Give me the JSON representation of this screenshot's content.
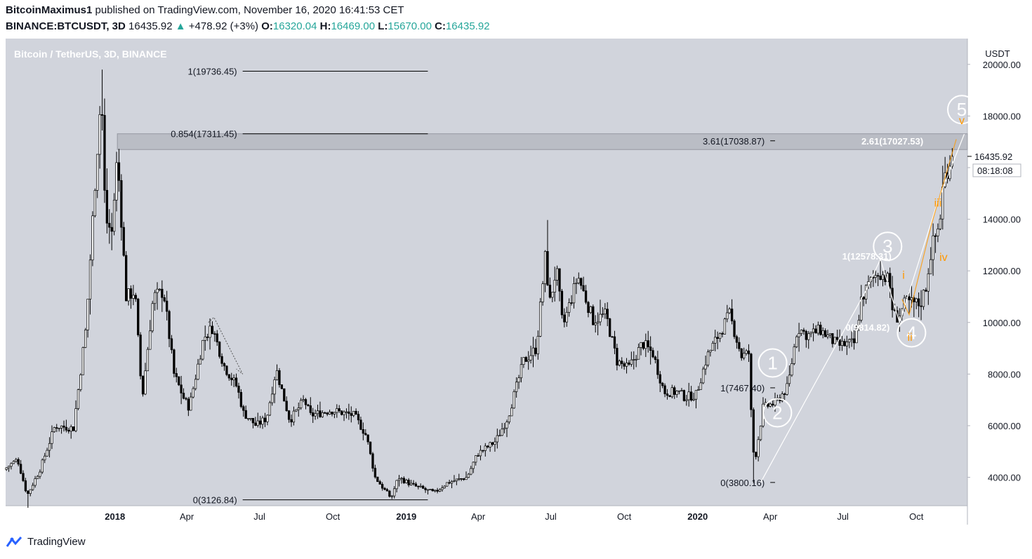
{
  "header": {
    "author": "BitcoinMaximus1",
    "published": "published on TradingView.com, November 16, 2020 16:41:53 CET",
    "symbol": "BINANCE:BTCUSDT, 3D",
    "last": "16435.92",
    "arrow": "▲",
    "change": "+478.92 (+3%)",
    "o_label": "O:",
    "o": "16320.04",
    "h_label": "H:",
    "h": "16469.00",
    "l_label": "L:",
    "l": "15670.00",
    "c_label": "C:",
    "c": "16435.92"
  },
  "footer": {
    "brand": "TradingView"
  },
  "colors": {
    "chart_bg": "#d1d4dc",
    "candle": "#000000",
    "wave_orange": "#ff9800",
    "wave_white": "#ffffff",
    "zone": "#b4b7bf"
  },
  "chart_data": {
    "type": "candlestick",
    "title": "Bitcoin / TetherUS, 3D, BINANCE",
    "ylabel": "USDT",
    "ylim": [
      2900,
      21000
    ],
    "yticks": [
      4000,
      6000,
      8000,
      10000,
      12000,
      14000,
      16000,
      18000,
      20000
    ],
    "ytick_labels": [
      "4000.00",
      "6000.00",
      "8000.00",
      "10000.00",
      "12000.00",
      "14000.00",
      "16000.00",
      "18000.00",
      "20000.00"
    ],
    "xlim": [
      "2017-08-17",
      "2020-12-04"
    ],
    "xticks": [
      {
        "date": "2018-01-01",
        "label": "2018",
        "bold": true
      },
      {
        "date": "2018-04-01",
        "label": "Apr",
        "bold": false
      },
      {
        "date": "2018-07-01",
        "label": "Jul",
        "bold": false
      },
      {
        "date": "2018-10-01",
        "label": "Oct",
        "bold": false
      },
      {
        "date": "2019-01-01",
        "label": "2019",
        "bold": true
      },
      {
        "date": "2019-04-01",
        "label": "Apr",
        "bold": false
      },
      {
        "date": "2019-07-01",
        "label": "Jul",
        "bold": false
      },
      {
        "date": "2019-10-01",
        "label": "Oct",
        "bold": false
      },
      {
        "date": "2020-01-01",
        "label": "2020",
        "bold": true
      },
      {
        "date": "2020-04-01",
        "label": "Apr",
        "bold": false
      },
      {
        "date": "2020-07-01",
        "label": "Jul",
        "bold": false
      },
      {
        "date": "2020-10-01",
        "label": "Oct",
        "bold": false
      }
    ],
    "price_path": [
      [
        "2017-08-17",
        4300
      ],
      [
        "2017-09-03",
        4700
      ],
      [
        "2017-09-15",
        3300
      ],
      [
        "2017-10-01",
        4300
      ],
      [
        "2017-10-20",
        6000
      ],
      [
        "2017-11-12",
        5900
      ],
      [
        "2017-11-28",
        9900
      ],
      [
        "2017-12-08",
        15000
      ],
      [
        "2017-12-17",
        19000
      ],
      [
        "2017-12-22",
        14000
      ],
      [
        "2017-12-30",
        13500
      ],
      [
        "2018-01-06",
        16500
      ],
      [
        "2018-01-17",
        11000
      ],
      [
        "2018-01-28",
        11200
      ],
      [
        "2018-02-06",
        7000
      ],
      [
        "2018-02-20",
        11000
      ],
      [
        "2018-03-05",
        11200
      ],
      [
        "2018-03-18",
        8000
      ],
      [
        "2018-03-31",
        7000
      ],
      [
        "2018-04-06",
        6700
      ],
      [
        "2018-04-24",
        9400
      ],
      [
        "2018-05-05",
        9800
      ],
      [
        "2018-05-20",
        8300
      ],
      [
        "2018-06-05",
        7500
      ],
      [
        "2018-06-13",
        6500
      ],
      [
        "2018-06-29",
        6000
      ],
      [
        "2018-07-12",
        6300
      ],
      [
        "2018-07-24",
        8200
      ],
      [
        "2018-08-10",
        6200
      ],
      [
        "2018-08-28",
        7000
      ],
      [
        "2018-09-05",
        6400
      ],
      [
        "2018-10-01",
        6600
      ],
      [
        "2018-10-30",
        6400
      ],
      [
        "2018-11-14",
        5600
      ],
      [
        "2018-11-25",
        4000
      ],
      [
        "2018-12-07",
        3500
      ],
      [
        "2018-12-15",
        3200
      ],
      [
        "2018-12-24",
        4000
      ],
      [
        "2019-01-10",
        3700
      ],
      [
        "2019-02-07",
        3400
      ],
      [
        "2019-02-24",
        3800
      ],
      [
        "2019-03-20",
        4000
      ],
      [
        "2019-04-02",
        4900
      ],
      [
        "2019-04-25",
        5400
      ],
      [
        "2019-05-10",
        6300
      ],
      [
        "2019-05-30",
        8500
      ],
      [
        "2019-06-15",
        9000
      ],
      [
        "2019-06-26",
        12500
      ],
      [
        "2019-07-02",
        10800
      ],
      [
        "2019-07-10",
        12100
      ],
      [
        "2019-07-18",
        9800
      ],
      [
        "2019-08-06",
        11800
      ],
      [
        "2019-08-25",
        10100
      ],
      [
        "2019-09-10",
        10300
      ],
      [
        "2019-09-24",
        8500
      ],
      [
        "2019-10-08",
        8200
      ],
      [
        "2019-10-26",
        9200
      ],
      [
        "2019-11-08",
        8800
      ],
      [
        "2019-11-22",
        7300
      ],
      [
        "2019-12-10",
        7300
      ],
      [
        "2019-12-18",
        7100
      ],
      [
        "2020-01-01",
        7200
      ],
      [
        "2020-01-15",
        8700
      ],
      [
        "2020-02-12",
        10300
      ],
      [
        "2020-02-27",
        8700
      ],
      [
        "2020-03-07",
        8800
      ],
      [
        "2020-03-12",
        5000
      ],
      [
        "2020-03-16",
        4900
      ],
      [
        "2020-03-25",
        6700
      ],
      [
        "2020-04-10",
        6900
      ],
      [
        "2020-04-25",
        7500
      ],
      [
        "2020-05-07",
        9800
      ],
      [
        "2020-05-20",
        9500
      ],
      [
        "2020-06-05",
        9700
      ],
      [
        "2020-06-27",
        9100
      ],
      [
        "2020-07-18",
        9200
      ],
      [
        "2020-07-26",
        10900
      ],
      [
        "2020-08-05",
        11500
      ],
      [
        "2020-08-17",
        12000
      ],
      [
        "2020-08-30",
        11600
      ],
      [
        "2020-09-04",
        10300
      ],
      [
        "2020-09-10",
        10200
      ],
      [
        "2020-09-20",
        10800
      ],
      [
        "2020-10-08",
        10700
      ],
      [
        "2020-10-15",
        11400
      ],
      [
        "2020-10-22",
        12900
      ],
      [
        "2020-11-01",
        13800
      ],
      [
        "2020-11-06",
        15500
      ],
      [
        "2020-11-16",
        16435.92
      ]
    ],
    "extremes": [
      {
        "date": "2017-09-15",
        "low": 2817
      },
      {
        "date": "2017-12-17",
        "high": 19798
      },
      {
        "date": "2018-12-15",
        "low": 3156
      },
      {
        "date": "2019-06-26",
        "high": 13970
      },
      {
        "date": "2020-03-12",
        "low": 3782
      },
      {
        "date": "2020-08-17",
        "high": 12486
      },
      {
        "date": "2020-11-13",
        "high": 16480
      }
    ],
    "current_price": "16435.92",
    "countdown": "08:18:08",
    "zone": {
      "from": "2018-01-04",
      "to": "2020-12-04",
      "low": 16700,
      "high": 17311.45
    },
    "fib_levels": [
      {
        "label": "1(19736.45)",
        "value": 19736.45,
        "from": "2018-06-10",
        "to": "2019-01-28"
      },
      {
        "label": "0.854(17311.45)",
        "value": 17311.45,
        "from": "2018-06-10",
        "to": "2019-01-28"
      },
      {
        "label": "0(3126.84)",
        "value": 3126.84,
        "from": "2018-06-10",
        "to": "2019-01-28"
      },
      {
        "label": "3.61(17038.87)",
        "value": 17038.87,
        "from": "2020-04-01",
        "to": "2020-04-07"
      },
      {
        "label": "1(7467.40)",
        "value": 7467.4,
        "from": "2020-04-01",
        "to": "2020-04-07"
      },
      {
        "label": "0(3800.16)",
        "value": 3800.16,
        "from": "2020-04-01",
        "to": "2020-04-07"
      }
    ],
    "fib_labels_white": [
      {
        "label": "2.61(17027.53)",
        "date": "2020-09-01",
        "value": 17027.53
      },
      {
        "label": "1(12578.31)",
        "date": "2020-07-31",
        "value": 12578.31
      },
      {
        "label": "0(9814.82)",
        "date": "2020-08-01",
        "value": 9814.82
      }
    ],
    "wave_circles": [
      {
        "label": "1",
        "date": "2020-04-04",
        "value": 8430
      },
      {
        "label": "2",
        "date": "2020-04-10",
        "value": 6500
      },
      {
        "label": "3",
        "date": "2020-08-26",
        "value": 12950
      },
      {
        "label": "4",
        "date": "2020-09-25",
        "value": 9600
      },
      {
        "label": "5",
        "date": "2020-11-27",
        "value": 18250
      }
    ],
    "wave_subs": [
      {
        "label": "i",
        "date": "2020-09-15",
        "value": 11850
      },
      {
        "label": "ii",
        "date": "2020-09-23",
        "value": 9450
      },
      {
        "label": "iii",
        "date": "2020-10-28",
        "value": 14650
      },
      {
        "label": "iv",
        "date": "2020-11-04",
        "value": 12550
      },
      {
        "label": "v",
        "date": "2020-11-27",
        "value": 17850
      }
    ],
    "wave_lines": [
      [
        [
          "2020-03-20",
          3800
        ],
        [
          "2020-07-31",
          11300
        ],
        [
          "2020-08-17",
          12450
        ],
        [
          "2020-09-10",
          10000
        ],
        [
          "2020-10-28",
          14700
        ],
        [
          "2020-11-30",
          17300
        ]
      ]
    ],
    "orange_lines": [
      [
        [
          "2020-09-13",
          10900
        ],
        [
          "2020-09-22",
          10300
        ],
        [
          "2020-10-20",
          13800
        ],
        [
          "2020-11-20",
          17100
        ]
      ]
    ],
    "dotted_path": [
      [
        "2018-04-28",
        10000
      ],
      [
        "2018-05-05",
        10200
      ],
      [
        "2018-06-10",
        8000
      ],
      [
        "2018-06-02",
        8200
      ]
    ]
  }
}
